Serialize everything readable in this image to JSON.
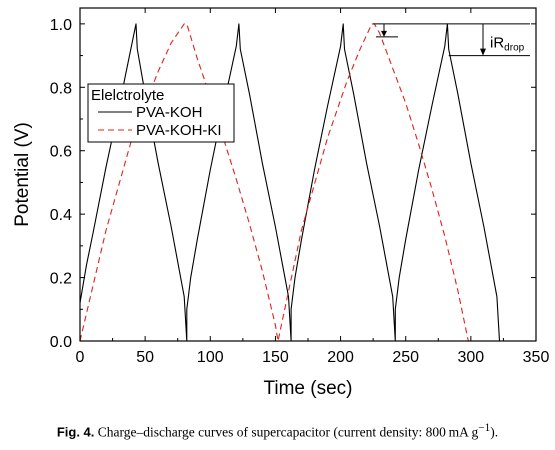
{
  "chart_data": {
    "type": "line",
    "xlabel": "Time (sec)",
    "ylabel": "Potential (V)",
    "xlim": [
      0,
      350
    ],
    "ylim": [
      0,
      1.05
    ],
    "xticks": [
      0,
      50,
      100,
      150,
      200,
      250,
      300,
      350
    ],
    "yticks": [
      0.0,
      0.2,
      0.4,
      0.6,
      0.8,
      1.0
    ],
    "xtick_labels": [
      "0",
      "50",
      "100",
      "150",
      "200",
      "250",
      "300",
      "350"
    ],
    "ytick_labels": [
      "0.0",
      "0.2",
      "0.4",
      "0.6",
      "0.8",
      "1.0"
    ],
    "legend": {
      "title": "Elelctrolyte",
      "placement": "upper-left"
    },
    "series": [
      {
        "name": "PVA-KOH",
        "color": "#000000",
        "style": "solid",
        "x": [
          0,
          5,
          10,
          20,
          30,
          40,
          43,
          44,
          50,
          60,
          70,
          80,
          82,
          82,
          85,
          90,
          100,
          110,
          120,
          122,
          123,
          130,
          140,
          150,
          160,
          162,
          162,
          165,
          170,
          180,
          190,
          200,
          202,
          203,
          210,
          220,
          230,
          240,
          242,
          242,
          245,
          250,
          260,
          270,
          280,
          282,
          283,
          290,
          300,
          310,
          320,
          322
        ],
        "y": [
          0.12,
          0.24,
          0.34,
          0.55,
          0.74,
          0.94,
          1.0,
          0.92,
          0.78,
          0.56,
          0.36,
          0.14,
          0.0,
          0.1,
          0.2,
          0.32,
          0.54,
          0.74,
          0.93,
          1.0,
          0.92,
          0.78,
          0.56,
          0.36,
          0.14,
          0.0,
          0.1,
          0.2,
          0.32,
          0.54,
          0.74,
          0.93,
          1.0,
          0.92,
          0.78,
          0.56,
          0.36,
          0.14,
          0.0,
          0.1,
          0.2,
          0.32,
          0.54,
          0.74,
          0.93,
          1.0,
          0.92,
          0.78,
          0.56,
          0.36,
          0.14,
          0.0
        ]
      },
      {
        "name": "PVA-KOH-KI",
        "color": "#e0231a",
        "style": "dashed",
        "x": [
          0,
          20,
          40,
          60,
          70,
          80,
          82,
          90,
          100,
          110,
          120,
          130,
          140,
          150,
          152,
          170,
          190,
          205,
          215,
          224,
          226,
          230,
          240,
          250,
          260,
          270,
          280,
          290,
          298
        ],
        "y": [
          0.0,
          0.35,
          0.64,
          0.85,
          0.94,
          1.0,
          1.0,
          0.89,
          0.77,
          0.64,
          0.51,
          0.37,
          0.22,
          0.05,
          0.0,
          0.35,
          0.64,
          0.82,
          0.92,
          1.0,
          1.0,
          0.97,
          0.86,
          0.75,
          0.62,
          0.48,
          0.33,
          0.16,
          0.0
        ]
      }
    ],
    "annotation": {
      "text": "iR",
      "subscript": "drop",
      "y_upper": 1.0,
      "y_lower": 0.9,
      "x_range": [
        225,
        283
      ]
    }
  },
  "caption": {
    "label": "Fig. 4.",
    "text": "Charge–discharge curves of supercapacitor (current density: 800 mA g",
    "superscript": "−1",
    "end": ")."
  }
}
